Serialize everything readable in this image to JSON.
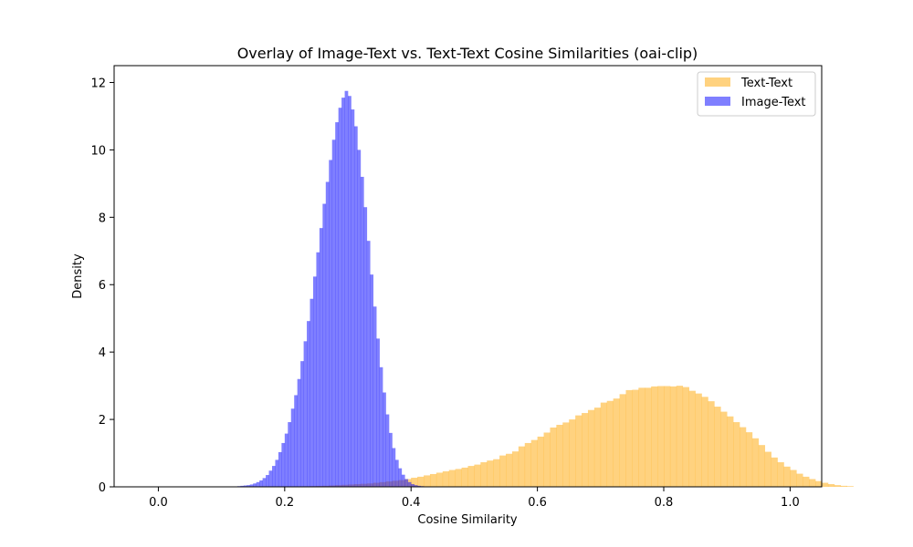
{
  "chart_data": {
    "type": "histogram",
    "title": "Overlay of Image-Text vs. Text-Text Cosine Similarities (oai-clip)",
    "xlabel": "Cosine Similarity",
    "ylabel": "Density",
    "xlim": [
      -0.07,
      1.05
    ],
    "ylim": [
      0,
      12.5
    ],
    "xticks": [
      0.0,
      0.2,
      0.4,
      0.6,
      0.8,
      1.0
    ],
    "xtick_labels": [
      "0.0",
      "0.2",
      "0.4",
      "0.6",
      "0.8",
      "1.0"
    ],
    "yticks": [
      0,
      2,
      4,
      6,
      8,
      10,
      12
    ],
    "ytick_labels": [
      "0",
      "2",
      "4",
      "6",
      "8",
      "10",
      "12"
    ],
    "grid": false,
    "legend_position": "upper right",
    "series": [
      {
        "name": "Text-Text",
        "color": "#FFA500",
        "alpha": 0.5,
        "bin_start": 0.0,
        "bin_width": 0.01,
        "values": [
          0.005,
          0.005,
          0.005,
          0.005,
          0.005,
          0.005,
          0.005,
          0.005,
          0.005,
          0.005,
          0.005,
          0.005,
          0.005,
          0.005,
          0.005,
          0.005,
          0.005,
          0.005,
          0.005,
          0.005,
          0.01,
          0.01,
          0.01,
          0.015,
          0.02,
          0.025,
          0.03,
          0.04,
          0.05,
          0.06,
          0.07,
          0.08,
          0.09,
          0.1,
          0.12,
          0.14,
          0.16,
          0.18,
          0.2,
          0.23,
          0.27,
          0.3,
          0.34,
          0.38,
          0.42,
          0.46,
          0.5,
          0.53,
          0.57,
          0.62,
          0.66,
          0.73,
          0.78,
          0.82,
          0.93,
          0.98,
          1.05,
          1.2,
          1.3,
          1.39,
          1.49,
          1.61,
          1.76,
          1.84,
          1.91,
          2.0,
          2.12,
          2.19,
          2.28,
          2.35,
          2.5,
          2.55,
          2.62,
          2.75,
          2.87,
          2.88,
          2.94,
          2.94,
          2.98,
          2.99,
          2.99,
          2.98,
          3.0,
          2.96,
          2.85,
          2.77,
          2.67,
          2.54,
          2.38,
          2.23,
          2.09,
          1.92,
          1.77,
          1.62,
          1.44,
          1.24,
          1.04,
          0.87,
          0.73,
          0.6,
          0.5,
          0.39,
          0.3,
          0.23,
          0.17,
          0.12,
          0.08,
          0.05,
          0.03,
          0.02
        ]
      },
      {
        "name": "Image-Text",
        "color": "#0000FF",
        "alpha": 0.5,
        "bin_start": 0.125,
        "bin_width": 0.005,
        "values": [
          0.02,
          0.03,
          0.04,
          0.05,
          0.07,
          0.1,
          0.14,
          0.19,
          0.26,
          0.35,
          0.48,
          0.62,
          0.8,
          1.03,
          1.3,
          1.58,
          1.92,
          2.32,
          2.72,
          3.2,
          3.73,
          4.32,
          4.92,
          5.58,
          6.24,
          6.96,
          7.68,
          8.4,
          9.05,
          9.7,
          10.3,
          10.82,
          11.25,
          11.55,
          11.75,
          11.6,
          11.2,
          10.7,
          10.0,
          9.2,
          8.3,
          7.3,
          6.3,
          5.35,
          4.4,
          3.55,
          2.8,
          2.15,
          1.6,
          1.15,
          0.8,
          0.55,
          0.36,
          0.23,
          0.14,
          0.08,
          0.05,
          0.03,
          0.02,
          0.01
        ]
      }
    ]
  }
}
